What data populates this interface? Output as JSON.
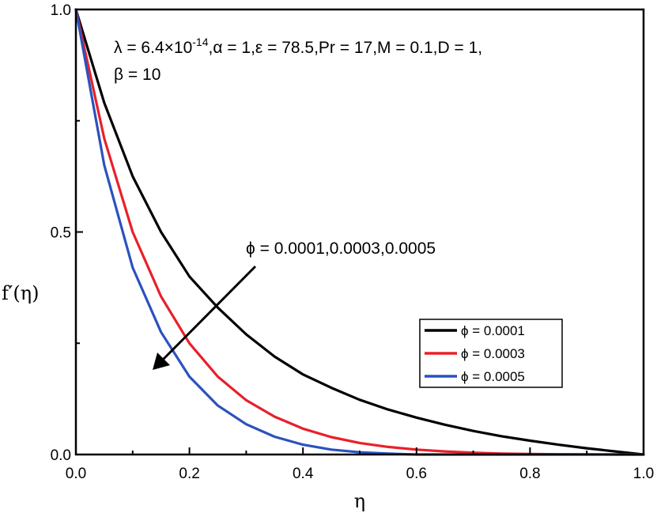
{
  "chart_data": {
    "type": "line",
    "xlabel": "η",
    "ylabel": "f′(η)",
    "xlim": [
      0.0,
      1.0
    ],
    "ylim": [
      0.0,
      1.0
    ],
    "x_ticks": [
      "0.0",
      "0.2",
      "0.4",
      "0.6",
      "0.8",
      "1.0"
    ],
    "y_ticks": [
      "0.0",
      "0.5",
      "1.0"
    ],
    "grid": false,
    "legend_position": "bottom-right",
    "parameters_line1": "λ = 6.4×10",
    "parameters_exponent": "-14",
    "parameters_line1_rest": ",α = 1,ε = 78.5,Pr = 17,M = 0.1,D = 1,",
    "parameters_line2": "β = 10",
    "arrow_annotation": "ϕ = 0.0001,0.0003,0.0005",
    "x": [
      0.0,
      0.05,
      0.1,
      0.15,
      0.2,
      0.25,
      0.3,
      0.35,
      0.4,
      0.45,
      0.5,
      0.55,
      0.6,
      0.65,
      0.7,
      0.75,
      0.8,
      0.85,
      0.9,
      0.95,
      1.0
    ],
    "series": [
      {
        "name": "ϕ = 0.0001",
        "color": "#000000",
        "values": [
          1.0,
          0.79,
          0.625,
          0.5,
          0.4,
          0.33,
          0.27,
          0.22,
          0.18,
          0.15,
          0.123,
          0.101,
          0.083,
          0.067,
          0.053,
          0.041,
          0.031,
          0.022,
          0.014,
          0.007,
          0.0
        ]
      },
      {
        "name": "ϕ = 0.0003",
        "color": "#e8202a",
        "values": [
          1.0,
          0.71,
          0.5,
          0.355,
          0.25,
          0.175,
          0.122,
          0.085,
          0.058,
          0.039,
          0.026,
          0.017,
          0.011,
          0.007,
          0.004,
          0.002,
          0.001,
          0.0005,
          0.0002,
          0.0,
          0.0
        ]
      },
      {
        "name": "ϕ = 0.0005",
        "color": "#2a52be",
        "values": [
          1.0,
          0.65,
          0.42,
          0.275,
          0.175,
          0.11,
          0.068,
          0.04,
          0.022,
          0.011,
          0.005,
          0.002,
          0.0,
          0.0,
          0.0,
          0.0,
          0.0,
          0.0,
          0.0,
          0.0,
          0.0
        ]
      }
    ]
  }
}
